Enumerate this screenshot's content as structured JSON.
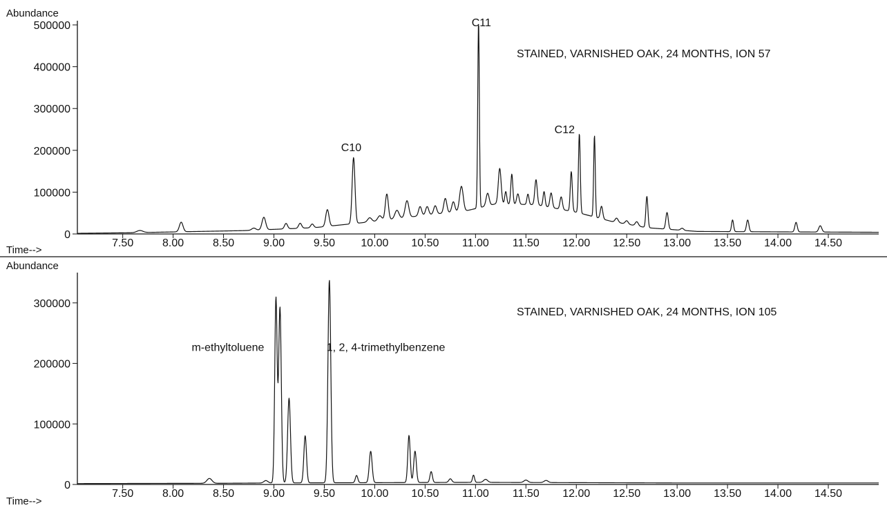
{
  "chart_data": [
    {
      "type": "line",
      "title": "STAINED, VARNISHED OAK, 24 MONTHS, ION 57",
      "ylabel": "Abundance",
      "xlabel": "Time-->",
      "xlim": [
        7.05,
        15.0
      ],
      "ylim": [
        0,
        510000
      ],
      "x_ticks": [
        "7.50",
        "8.00",
        "8.50",
        "9.00",
        "9.50",
        "10.00",
        "10.50",
        "11.00",
        "11.50",
        "12.00",
        "12.50",
        "13.00",
        "13.50",
        "14.00",
        "14.50"
      ],
      "y_ticks": [
        "0",
        "100000",
        "200000",
        "300000",
        "400000",
        "500000"
      ],
      "annotations": [
        {
          "text": "C10",
          "x": 9.79,
          "y": 185000
        },
        {
          "text": "C11",
          "x": 11.03,
          "y": 510000
        },
        {
          "text": "C12",
          "x": 12.03,
          "y": 228000
        }
      ],
      "baseline": [
        [
          7.05,
          1500
        ],
        [
          7.6,
          3000
        ],
        [
          8.7,
          8000
        ],
        [
          9.4,
          15000
        ],
        [
          10.0,
          30000
        ],
        [
          10.5,
          45000
        ],
        [
          10.9,
          55000
        ],
        [
          11.2,
          72000
        ],
        [
          11.6,
          70000
        ],
        [
          12.0,
          52000
        ],
        [
          12.35,
          30000
        ],
        [
          12.7,
          15000
        ],
        [
          13.2,
          6000
        ],
        [
          14.0,
          5000
        ],
        [
          15.0,
          4000
        ]
      ],
      "peaks": [
        [
          7.67,
          5000,
          0.03
        ],
        [
          8.08,
          23000,
          0.018
        ],
        [
          8.8,
          5000,
          0.02
        ],
        [
          8.9,
          30000,
          0.018
        ],
        [
          9.12,
          13000,
          0.015
        ],
        [
          9.26,
          12000,
          0.015
        ],
        [
          9.38,
          9000,
          0.015
        ],
        [
          9.53,
          40000,
          0.016
        ],
        [
          9.79,
          158000,
          0.014
        ],
        [
          9.95,
          10000,
          0.02
        ],
        [
          10.05,
          12000,
          0.02
        ],
        [
          10.12,
          62000,
          0.015
        ],
        [
          10.22,
          20000,
          0.02
        ],
        [
          10.32,
          40000,
          0.018
        ],
        [
          10.45,
          22000,
          0.015
        ],
        [
          10.52,
          20000,
          0.015
        ],
        [
          10.6,
          20000,
          0.015
        ],
        [
          10.7,
          35000,
          0.015
        ],
        [
          10.78,
          25000,
          0.015
        ],
        [
          10.86,
          60000,
          0.018
        ],
        [
          11.03,
          445000,
          0.008
        ],
        [
          11.12,
          30000,
          0.015
        ],
        [
          11.24,
          85000,
          0.014
        ],
        [
          11.3,
          30000,
          0.01
        ],
        [
          11.36,
          72000,
          0.01
        ],
        [
          11.42,
          25000,
          0.012
        ],
        [
          11.52,
          25000,
          0.01
        ],
        [
          11.6,
          60000,
          0.012
        ],
        [
          11.68,
          35000,
          0.01
        ],
        [
          11.75,
          35000,
          0.012
        ],
        [
          11.85,
          30000,
          0.012
        ],
        [
          11.95,
          95000,
          0.01
        ],
        [
          12.03,
          190000,
          0.009
        ],
        [
          12.18,
          195000,
          0.008
        ],
        [
          12.25,
          30000,
          0.012
        ],
        [
          12.4,
          10000,
          0.015
        ],
        [
          12.5,
          8000,
          0.015
        ],
        [
          12.6,
          10000,
          0.015
        ],
        [
          12.7,
          75000,
          0.01
        ],
        [
          12.9,
          40000,
          0.012
        ],
        [
          13.05,
          5000,
          0.015
        ],
        [
          13.55,
          28000,
          0.01
        ],
        [
          13.7,
          28000,
          0.012
        ],
        [
          14.18,
          23000,
          0.012
        ],
        [
          14.42,
          15000,
          0.015
        ]
      ]
    },
    {
      "type": "line",
      "title": "STAINED, VARNISHED OAK, 24 MONTHS, ION 105",
      "ylabel": "Abundance",
      "xlabel": "Time-->",
      "xlim": [
        7.05,
        15.0
      ],
      "ylim": [
        0,
        350000
      ],
      "x_ticks": [
        "7.50",
        "8.00",
        "8.50",
        "9.00",
        "9.50",
        "10.00",
        "10.50",
        "11.00",
        "11.50",
        "12.00",
        "12.50",
        "13.00",
        "13.50",
        "14.00",
        "14.50"
      ],
      "y_ticks": [
        "0",
        "100000",
        "200000",
        "300000"
      ],
      "annotations": [
        {
          "text": "m-ethyltoluene",
          "x": 9.02,
          "y": 225000
        },
        {
          "text": "1, 2, 4-trimethylbenzene",
          "x": 9.55,
          "y": 225000
        }
      ],
      "baseline": [
        [
          7.05,
          1500
        ],
        [
          8.5,
          2000
        ],
        [
          9.0,
          2500
        ],
        [
          10.0,
          3000
        ],
        [
          11.0,
          3500
        ],
        [
          12.0,
          3000
        ],
        [
          13.0,
          2500
        ],
        [
          15.0,
          2500
        ]
      ],
      "peaks": [
        [
          8.36,
          8000,
          0.025
        ],
        [
          8.92,
          4000,
          0.02
        ],
        [
          9.02,
          305000,
          0.012
        ],
        [
          9.06,
          290000,
          0.013
        ],
        [
          9.15,
          140000,
          0.014
        ],
        [
          9.31,
          78000,
          0.013
        ],
        [
          9.55,
          335000,
          0.014
        ],
        [
          9.82,
          12000,
          0.012
        ],
        [
          9.96,
          52000,
          0.014
        ],
        [
          10.34,
          78000,
          0.012
        ],
        [
          10.4,
          52000,
          0.013
        ],
        [
          10.56,
          18000,
          0.012
        ],
        [
          10.75,
          6000,
          0.015
        ],
        [
          10.98,
          12000,
          0.01
        ],
        [
          11.1,
          5000,
          0.02
        ],
        [
          11.5,
          4000,
          0.02
        ],
        [
          11.7,
          3500,
          0.02
        ]
      ]
    }
  ]
}
